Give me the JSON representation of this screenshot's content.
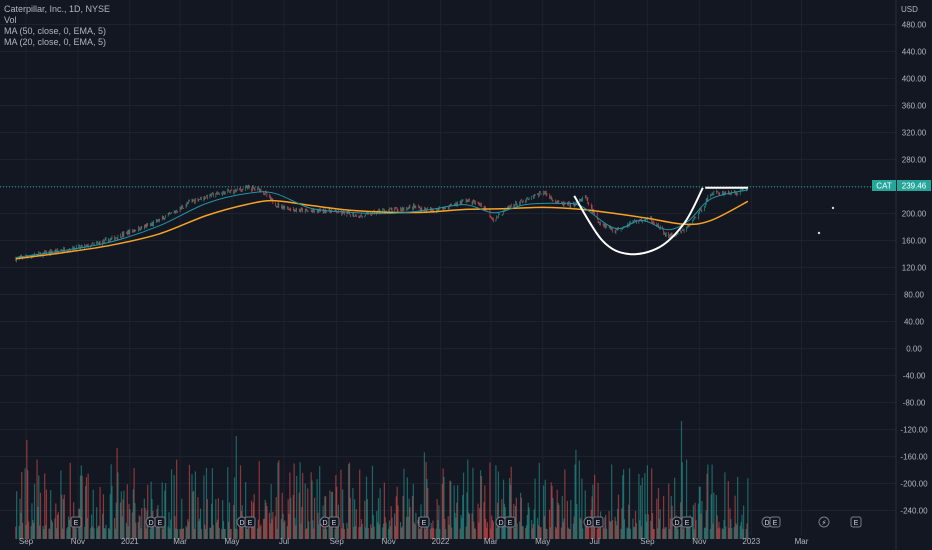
{
  "legend": {
    "title": "Caterpillar, Inc., 1D, NYSE",
    "vol": "Vol",
    "ma50": "MA (50, close, 0, EMA, 5)",
    "ma20": "MA (20, close, 0, EMA, 5)"
  },
  "currency": "USD",
  "last_price": {
    "symbol": "CAT",
    "value": "239.46"
  },
  "colors": {
    "background": "#131722",
    "grid": "#1e222d",
    "axis_text": "#b2b5be",
    "up": "#26a69a",
    "down": "#ef5350",
    "ma50": "#f7a224",
    "ma20": "#2196a6",
    "drawing": "#ffffff",
    "last_line": "#26a69a"
  },
  "icons": [
    "earnings-icon",
    "dividend-icon",
    "flash-icon"
  ],
  "chart_data": {
    "type": "line",
    "title": "Caterpillar, Inc., 1D, NYSE",
    "y_ticks": [
      "480.00",
      "440.00",
      "400.00",
      "360.00",
      "320.00",
      "280.00",
      "240.00",
      "200.00",
      "160.00",
      "120.00",
      "80.00",
      "40.00",
      "0.00",
      "-40.00",
      "-80.00",
      "-120.00",
      "-160.00",
      "-200.00",
      "-240.00"
    ],
    "ylim": [
      -250,
      505
    ],
    "x_ticks": [
      "Sep",
      "Nov",
      "2021",
      "Mar",
      "May",
      "Jul",
      "Sep",
      "Nov",
      "2022",
      "Mar",
      "May",
      "Jul",
      "Sep",
      "Nov",
      "2023",
      "Mar"
    ],
    "x_tick_dates": [
      "2020-09-01",
      "2020-11-01",
      "2021-01-01",
      "2021-03-01",
      "2021-05-01",
      "2021-07-01",
      "2021-09-01",
      "2021-11-01",
      "2022-01-01",
      "2022-03-01",
      "2022-05-01",
      "2022-07-01",
      "2022-09-01",
      "2022-11-01",
      "2023-01-01",
      "2023-03-01"
    ],
    "series": [
      {
        "kind": "price",
        "dates": [
          "2020-08-20",
          "2020-09-15",
          "2020-10-15",
          "2020-11-15",
          "2020-12-10",
          "2021-01-05",
          "2021-01-25",
          "2021-02-20",
          "2021-03-15",
          "2021-04-10",
          "2021-05-01",
          "2021-05-20",
          "2021-06-05",
          "2021-06-20",
          "2021-07-10",
          "2021-08-01",
          "2021-08-20",
          "2021-09-10",
          "2021-10-01",
          "2021-10-20",
          "2021-11-10",
          "2021-12-01",
          "2021-12-20",
          "2022-01-10",
          "2022-01-30",
          "2022-02-20",
          "2022-03-05",
          "2022-03-25",
          "2022-04-10",
          "2022-05-01",
          "2022-05-20",
          "2022-06-05",
          "2022-06-20",
          "2022-07-05",
          "2022-07-25",
          "2022-08-15",
          "2022-09-05",
          "2022-09-25",
          "2022-10-15",
          "2022-11-01",
          "2022-11-15",
          "2022-12-01",
          "2022-12-15",
          "2022-12-28"
        ],
        "values": [
          133,
          139,
          146,
          152,
          162,
          175,
          183,
          200,
          219,
          228,
          233,
          238,
          235,
          214,
          206,
          203,
          205,
          200,
          196,
          203,
          206,
          210,
          204,
          210,
          220,
          212,
          190,
          212,
          218,
          232,
          215,
          212,
          224,
          188,
          175,
          188,
          192,
          165,
          175,
          202,
          230,
          231,
          230,
          239
        ]
      },
      {
        "name": "MA (50, close, 0, EMA, 5)",
        "dates": [
          "2020-08-20",
          "2020-10-15",
          "2020-12-10",
          "2021-02-05",
          "2021-04-01",
          "2021-05-20",
          "2021-06-20",
          "2021-08-01",
          "2021-09-15",
          "2021-11-01",
          "2021-12-15",
          "2022-01-30",
          "2022-03-15",
          "2022-05-01",
          "2022-06-15",
          "2022-07-25",
          "2022-09-01",
          "2022-10-15",
          "2022-11-15",
          "2022-12-28"
        ],
        "values": [
          133,
          142,
          153,
          170,
          197,
          214,
          219,
          212,
          205,
          202,
          202,
          206,
          207,
          209,
          206,
          200,
          193,
          184,
          190,
          218
        ]
      },
      {
        "name": "MA (20, close, 0, EMA, 5)",
        "dates": [
          "2020-08-20",
          "2020-10-15",
          "2020-12-10",
          "2021-02-05",
          "2021-04-01",
          "2021-05-20",
          "2021-06-20",
          "2021-08-01",
          "2021-09-15",
          "2021-11-01",
          "2021-12-15",
          "2022-01-30",
          "2022-03-05",
          "2022-04-10",
          "2022-05-20",
          "2022-06-15",
          "2022-07-25",
          "2022-08-25",
          "2022-09-25",
          "2022-10-20",
          "2022-11-15",
          "2022-12-28"
        ],
        "values": [
          135,
          145,
          158,
          182,
          215,
          230,
          230,
          208,
          202,
          200,
          205,
          213,
          201,
          213,
          215,
          211,
          178,
          190,
          176,
          190,
          222,
          235
        ]
      }
    ],
    "drawings": [
      {
        "shape": "cup",
        "dates": [
          "2022-06-07",
          "2022-07-10",
          "2022-08-10",
          "2022-09-15",
          "2022-10-15",
          "2022-11-05"
        ],
        "values": [
          226,
          160,
          140,
          150,
          187,
          238
        ]
      },
      {
        "shape": "handle",
        "dates": [
          "2022-11-08",
          "2022-12-28"
        ],
        "values": [
          238,
          238
        ]
      }
    ],
    "grid": true
  }
}
